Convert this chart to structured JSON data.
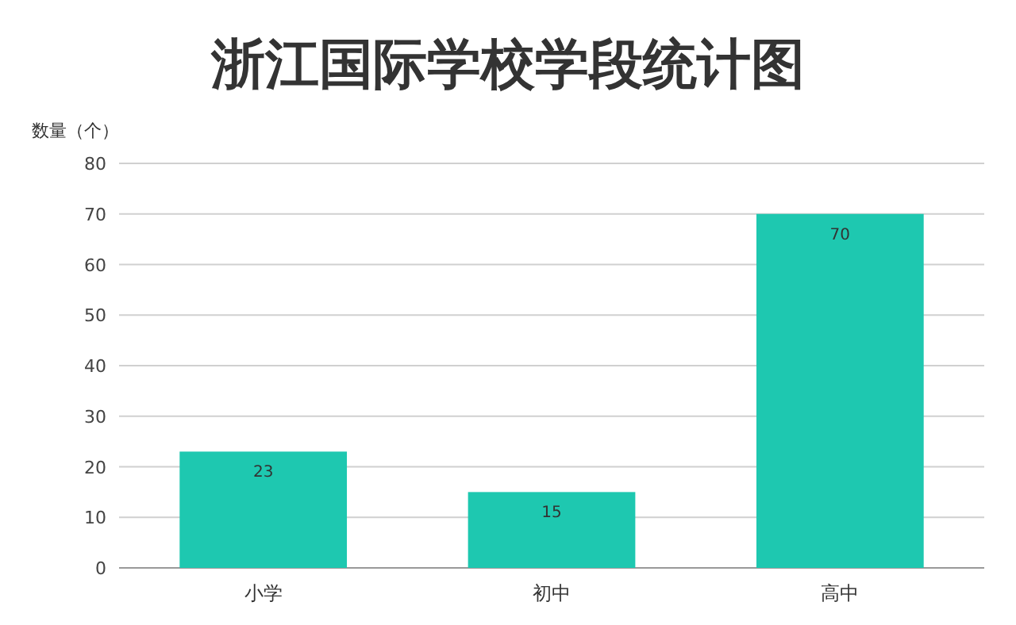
{
  "chart_data": {
    "type": "bar",
    "title": "浙江国际学校学段统计图",
    "ylabel": "数量（个）",
    "categories": [
      "小学",
      "初中",
      "高中"
    ],
    "values": [
      23,
      15,
      70
    ],
    "color": "#1ec8b0",
    "ylim": [
      0,
      80
    ],
    "yticks": [
      0,
      10,
      20,
      30,
      40,
      50,
      60,
      70,
      80
    ],
    "grid": "y",
    "data_labels": true
  }
}
